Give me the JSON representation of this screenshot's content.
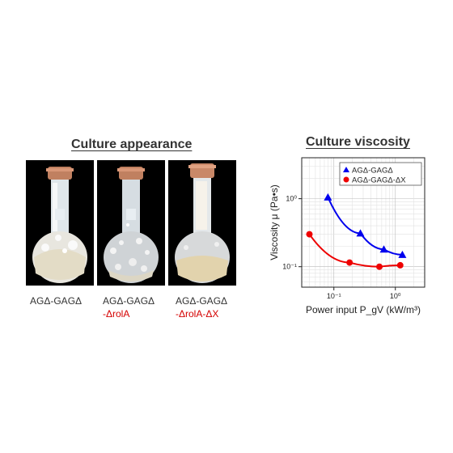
{
  "left_panel": {
    "title": "Culture appearance",
    "captions": [
      {
        "line1": "AGΔ-GAGΔ",
        "line2": ""
      },
      {
        "line1": "AGΔ-GAGΔ",
        "line2": "-ΔrolA"
      },
      {
        "line1": "AGΔ-GAGΔ",
        "line2": "-ΔrolA-ΔX"
      }
    ]
  },
  "right_panel": {
    "title": "Culture viscosity"
  },
  "colors": {
    "blue": "#0000ee",
    "red": "#ee0000",
    "caption_red": "#d40000"
  },
  "chart_data": {
    "type": "line",
    "title": "Culture viscosity",
    "xlabel": "Power input  P_gV (kW/m³)",
    "ylabel": "Viscosity μ (Pa•s)",
    "xscale": "log",
    "yscale": "log",
    "xlim": [
      0.03,
      3
    ],
    "ylim": [
      0.05,
      4
    ],
    "x_ticks": [
      "10⁻¹",
      "10⁰"
    ],
    "y_ticks": [
      "10⁻¹",
      "10⁰"
    ],
    "grid": true,
    "legend_position": "top-right",
    "series": [
      {
        "name": "AGΔ-GAGΔ",
        "marker": "triangle",
        "color": "#0000ee",
        "x": [
          0.08,
          0.27,
          0.65,
          1.3
        ],
        "y": [
          1.05,
          0.31,
          0.18,
          0.15
        ]
      },
      {
        "name": "AGΔ-GAGΔ-ΔX",
        "marker": "circle",
        "color": "#ee0000",
        "x": [
          0.04,
          0.18,
          0.55,
          1.2
        ],
        "y": [
          0.3,
          0.115,
          0.1,
          0.105
        ]
      }
    ]
  }
}
